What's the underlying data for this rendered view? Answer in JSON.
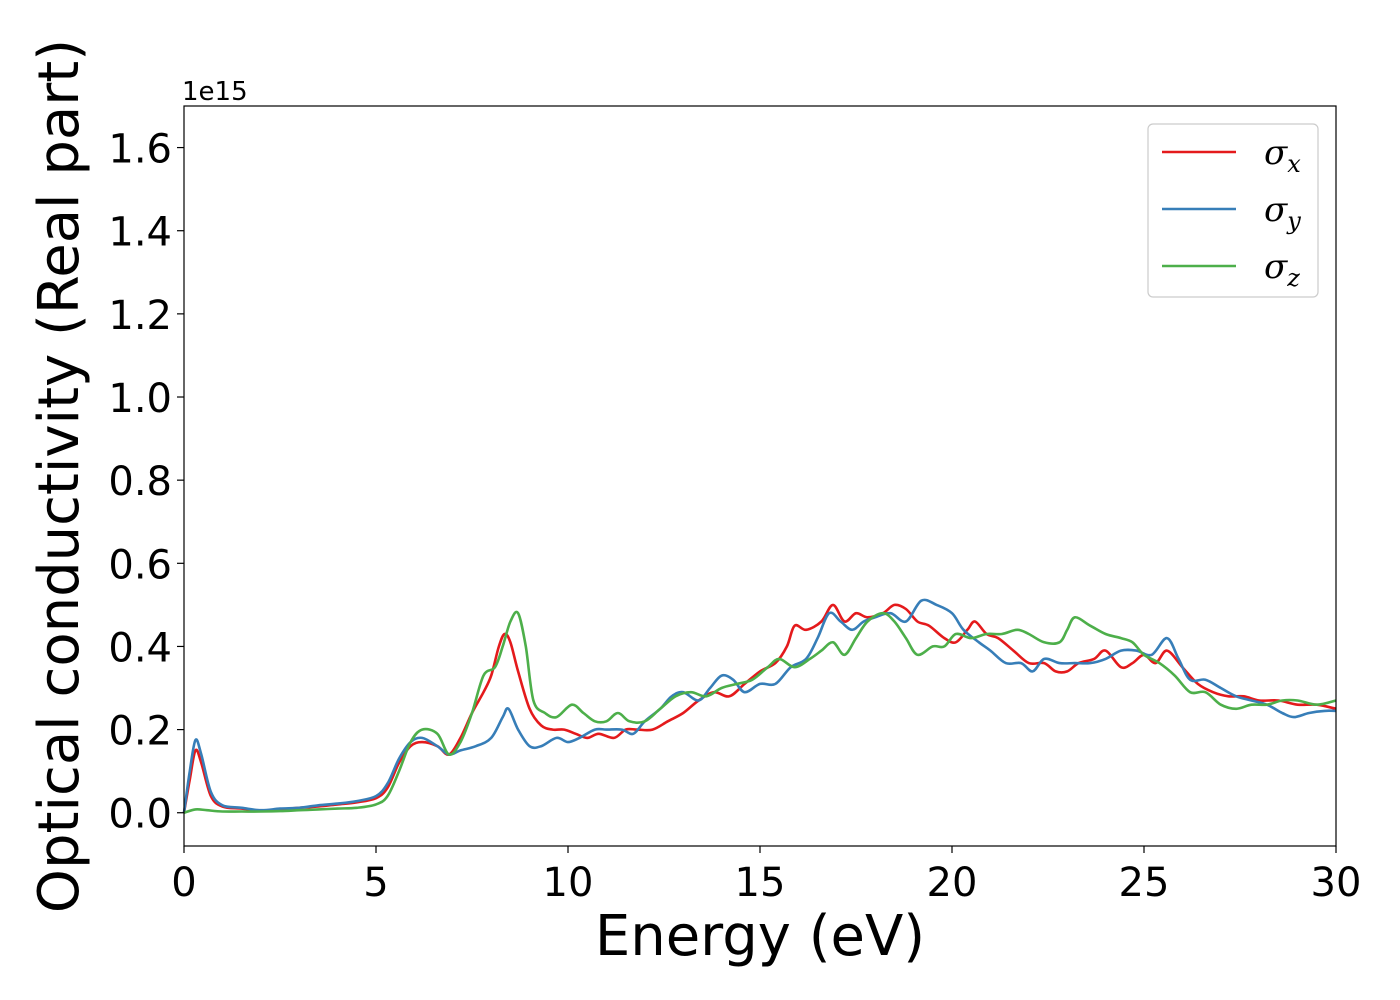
{
  "chart_data": {
    "type": "line",
    "xlabel": "Energy (eV)",
    "ylabel": "Optical conductivity (Real part)",
    "y_offset_text": "1e15",
    "xlim": [
      0,
      30
    ],
    "ylim": [
      -0.08,
      1.7
    ],
    "xticks": [
      0,
      5,
      10,
      15,
      20,
      25,
      30
    ],
    "xtick_labels": [
      "0",
      "5",
      "10",
      "15",
      "20",
      "25",
      "30"
    ],
    "yticks": [
      0.0,
      0.2,
      0.4,
      0.6,
      0.8,
      1.0,
      1.2,
      1.4,
      1.6
    ],
    "ytick_labels": [
      "0.0",
      "0.2",
      "0.4",
      "0.6",
      "0.8",
      "1.0",
      "1.2",
      "1.4",
      "1.6"
    ],
    "grid": false,
    "legend_position": "top-right",
    "series": [
      {
        "name": "σx",
        "legend_symbol": "σ",
        "legend_subscript": "x",
        "color": "#e41a1c",
        "points": [
          [
            0,
            0
          ],
          [
            0.15,
            0.08
          ],
          [
            0.3,
            0.15
          ],
          [
            0.45,
            0.12
          ],
          [
            0.7,
            0.04
          ],
          [
            1.0,
            0.015
          ],
          [
            1.5,
            0.01
          ],
          [
            2.0,
            0.005
          ],
          [
            2.5,
            0.008
          ],
          [
            3.0,
            0.012
          ],
          [
            3.5,
            0.015
          ],
          [
            4.0,
            0.02
          ],
          [
            4.5,
            0.025
          ],
          [
            5.0,
            0.035
          ],
          [
            5.3,
            0.06
          ],
          [
            5.6,
            0.12
          ],
          [
            5.9,
            0.16
          ],
          [
            6.2,
            0.17
          ],
          [
            6.6,
            0.16
          ],
          [
            6.9,
            0.14
          ],
          [
            7.2,
            0.18
          ],
          [
            7.5,
            0.24
          ],
          [
            7.8,
            0.29
          ],
          [
            8.0,
            0.33
          ],
          [
            8.2,
            0.4
          ],
          [
            8.35,
            0.43
          ],
          [
            8.5,
            0.41
          ],
          [
            8.7,
            0.34
          ],
          [
            9.0,
            0.25
          ],
          [
            9.3,
            0.21
          ],
          [
            9.6,
            0.2
          ],
          [
            9.9,
            0.2
          ],
          [
            10.2,
            0.19
          ],
          [
            10.5,
            0.18
          ],
          [
            10.8,
            0.19
          ],
          [
            11.2,
            0.18
          ],
          [
            11.5,
            0.2
          ],
          [
            11.8,
            0.2
          ],
          [
            12.2,
            0.2
          ],
          [
            12.6,
            0.22
          ],
          [
            13.0,
            0.24
          ],
          [
            13.4,
            0.27
          ],
          [
            13.8,
            0.29
          ],
          [
            14.2,
            0.28
          ],
          [
            14.6,
            0.31
          ],
          [
            15.0,
            0.34
          ],
          [
            15.4,
            0.36
          ],
          [
            15.7,
            0.4
          ],
          [
            15.9,
            0.45
          ],
          [
            16.2,
            0.44
          ],
          [
            16.6,
            0.46
          ],
          [
            16.9,
            0.5
          ],
          [
            17.2,
            0.46
          ],
          [
            17.5,
            0.48
          ],
          [
            17.8,
            0.47
          ],
          [
            18.2,
            0.48
          ],
          [
            18.5,
            0.5
          ],
          [
            18.8,
            0.49
          ],
          [
            19.1,
            0.46
          ],
          [
            19.4,
            0.45
          ],
          [
            19.8,
            0.42
          ],
          [
            20.1,
            0.41
          ],
          [
            20.4,
            0.44
          ],
          [
            20.6,
            0.46
          ],
          [
            20.9,
            0.43
          ],
          [
            21.2,
            0.42
          ],
          [
            21.6,
            0.39
          ],
          [
            22.0,
            0.36
          ],
          [
            22.4,
            0.36
          ],
          [
            22.7,
            0.34
          ],
          [
            23.0,
            0.34
          ],
          [
            23.3,
            0.36
          ],
          [
            23.7,
            0.37
          ],
          [
            24.0,
            0.39
          ],
          [
            24.4,
            0.35
          ],
          [
            24.7,
            0.36
          ],
          [
            25.0,
            0.38
          ],
          [
            25.3,
            0.36
          ],
          [
            25.6,
            0.39
          ],
          [
            26.0,
            0.35
          ],
          [
            26.4,
            0.31
          ],
          [
            26.8,
            0.29
          ],
          [
            27.2,
            0.28
          ],
          [
            27.6,
            0.28
          ],
          [
            28.0,
            0.27
          ],
          [
            28.5,
            0.27
          ],
          [
            29.0,
            0.26
          ],
          [
            29.5,
            0.26
          ],
          [
            30.0,
            0.25
          ]
        ]
      },
      {
        "name": "σy",
        "legend_symbol": "σ",
        "legend_subscript": "y",
        "color": "#377eb8",
        "points": [
          [
            0,
            0
          ],
          [
            0.15,
            0.1
          ],
          [
            0.3,
            0.175
          ],
          [
            0.45,
            0.14
          ],
          [
            0.7,
            0.05
          ],
          [
            1.0,
            0.018
          ],
          [
            1.5,
            0.012
          ],
          [
            2.0,
            0.006
          ],
          [
            2.5,
            0.01
          ],
          [
            3.0,
            0.012
          ],
          [
            3.5,
            0.018
          ],
          [
            4.0,
            0.022
          ],
          [
            4.5,
            0.028
          ],
          [
            5.0,
            0.04
          ],
          [
            5.3,
            0.07
          ],
          [
            5.6,
            0.13
          ],
          [
            5.9,
            0.17
          ],
          [
            6.2,
            0.18
          ],
          [
            6.6,
            0.16
          ],
          [
            6.9,
            0.14
          ],
          [
            7.2,
            0.15
          ],
          [
            7.6,
            0.16
          ],
          [
            8.0,
            0.18
          ],
          [
            8.3,
            0.23
          ],
          [
            8.45,
            0.25
          ],
          [
            8.7,
            0.2
          ],
          [
            9.0,
            0.16
          ],
          [
            9.3,
            0.16
          ],
          [
            9.7,
            0.18
          ],
          [
            10.0,
            0.17
          ],
          [
            10.3,
            0.18
          ],
          [
            10.7,
            0.2
          ],
          [
            11.0,
            0.2
          ],
          [
            11.4,
            0.2
          ],
          [
            11.7,
            0.19
          ],
          [
            12.0,
            0.22
          ],
          [
            12.4,
            0.25
          ],
          [
            12.7,
            0.28
          ],
          [
            13.0,
            0.29
          ],
          [
            13.4,
            0.27
          ],
          [
            13.7,
            0.3
          ],
          [
            14.0,
            0.33
          ],
          [
            14.3,
            0.32
          ],
          [
            14.6,
            0.29
          ],
          [
            15.0,
            0.31
          ],
          [
            15.4,
            0.31
          ],
          [
            15.8,
            0.35
          ],
          [
            16.2,
            0.37
          ],
          [
            16.5,
            0.42
          ],
          [
            16.8,
            0.48
          ],
          [
            17.1,
            0.46
          ],
          [
            17.4,
            0.44
          ],
          [
            17.7,
            0.46
          ],
          [
            18.0,
            0.47
          ],
          [
            18.4,
            0.48
          ],
          [
            18.8,
            0.46
          ],
          [
            19.2,
            0.51
          ],
          [
            19.6,
            0.5
          ],
          [
            20.0,
            0.48
          ],
          [
            20.3,
            0.44
          ],
          [
            20.7,
            0.41
          ],
          [
            21.0,
            0.39
          ],
          [
            21.4,
            0.36
          ],
          [
            21.8,
            0.36
          ],
          [
            22.1,
            0.34
          ],
          [
            22.4,
            0.37
          ],
          [
            22.8,
            0.36
          ],
          [
            23.2,
            0.36
          ],
          [
            23.6,
            0.36
          ],
          [
            24.0,
            0.37
          ],
          [
            24.4,
            0.39
          ],
          [
            24.8,
            0.39
          ],
          [
            25.2,
            0.38
          ],
          [
            25.6,
            0.42
          ],
          [
            25.9,
            0.37
          ],
          [
            26.2,
            0.32
          ],
          [
            26.6,
            0.32
          ],
          [
            27.0,
            0.3
          ],
          [
            27.4,
            0.28
          ],
          [
            27.8,
            0.27
          ],
          [
            28.2,
            0.26
          ],
          [
            28.6,
            0.24
          ],
          [
            28.9,
            0.23
          ],
          [
            29.3,
            0.24
          ],
          [
            29.7,
            0.245
          ],
          [
            30.0,
            0.245
          ]
        ]
      },
      {
        "name": "σz",
        "legend_symbol": "σ",
        "legend_subscript": "z",
        "color": "#4daf4a",
        "points": [
          [
            0,
            0
          ],
          [
            0.3,
            0.008
          ],
          [
            0.6,
            0.006
          ],
          [
            1.0,
            0.003
          ],
          [
            1.5,
            0.003
          ],
          [
            2.0,
            0.003
          ],
          [
            2.5,
            0.004
          ],
          [
            3.0,
            0.006
          ],
          [
            3.5,
            0.008
          ],
          [
            4.0,
            0.01
          ],
          [
            4.5,
            0.012
          ],
          [
            5.0,
            0.02
          ],
          [
            5.3,
            0.04
          ],
          [
            5.6,
            0.1
          ],
          [
            5.9,
            0.17
          ],
          [
            6.2,
            0.2
          ],
          [
            6.6,
            0.19
          ],
          [
            6.9,
            0.14
          ],
          [
            7.2,
            0.17
          ],
          [
            7.5,
            0.24
          ],
          [
            7.8,
            0.33
          ],
          [
            8.1,
            0.35
          ],
          [
            8.3,
            0.4
          ],
          [
            8.5,
            0.46
          ],
          [
            8.7,
            0.48
          ],
          [
            8.9,
            0.4
          ],
          [
            9.1,
            0.27
          ],
          [
            9.4,
            0.24
          ],
          [
            9.7,
            0.23
          ],
          [
            10.1,
            0.26
          ],
          [
            10.4,
            0.24
          ],
          [
            10.7,
            0.22
          ],
          [
            11.0,
            0.22
          ],
          [
            11.3,
            0.24
          ],
          [
            11.6,
            0.22
          ],
          [
            12.0,
            0.22
          ],
          [
            12.4,
            0.25
          ],
          [
            12.8,
            0.28
          ],
          [
            13.2,
            0.29
          ],
          [
            13.6,
            0.28
          ],
          [
            14.0,
            0.3
          ],
          [
            14.4,
            0.31
          ],
          [
            14.8,
            0.32
          ],
          [
            15.2,
            0.35
          ],
          [
            15.5,
            0.37
          ],
          [
            15.9,
            0.35
          ],
          [
            16.3,
            0.37
          ],
          [
            16.6,
            0.39
          ],
          [
            16.9,
            0.41
          ],
          [
            17.2,
            0.38
          ],
          [
            17.5,
            0.42
          ],
          [
            17.8,
            0.46
          ],
          [
            18.2,
            0.48
          ],
          [
            18.5,
            0.46
          ],
          [
            18.8,
            0.42
          ],
          [
            19.1,
            0.38
          ],
          [
            19.5,
            0.4
          ],
          [
            19.8,
            0.4
          ],
          [
            20.1,
            0.43
          ],
          [
            20.5,
            0.42
          ],
          [
            20.9,
            0.43
          ],
          [
            21.3,
            0.43
          ],
          [
            21.7,
            0.44
          ],
          [
            22.0,
            0.43
          ],
          [
            22.4,
            0.41
          ],
          [
            22.8,
            0.41
          ],
          [
            23.0,
            0.44
          ],
          [
            23.2,
            0.47
          ],
          [
            23.6,
            0.45
          ],
          [
            24.0,
            0.43
          ],
          [
            24.4,
            0.42
          ],
          [
            24.7,
            0.41
          ],
          [
            25.0,
            0.38
          ],
          [
            25.4,
            0.36
          ],
          [
            25.8,
            0.33
          ],
          [
            26.2,
            0.29
          ],
          [
            26.6,
            0.29
          ],
          [
            27.0,
            0.26
          ],
          [
            27.4,
            0.25
          ],
          [
            27.8,
            0.26
          ],
          [
            28.2,
            0.26
          ],
          [
            28.6,
            0.27
          ],
          [
            29.0,
            0.27
          ],
          [
            29.5,
            0.26
          ],
          [
            30.0,
            0.27
          ]
        ]
      }
    ]
  }
}
